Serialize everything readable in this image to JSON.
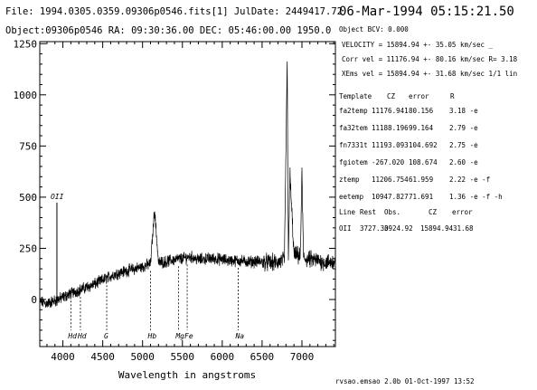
{
  "header": {
    "file_line": "File: 1994.0305.0359.09306p0546.fits[1]  JulDate: 2449417.72",
    "object_line": "Object:09306p0546 RA: 09:30:36.00 DEC: 05:46:00.00 1950.0",
    "datetime": "06-Mar-1994 05:15:21.50",
    "bcv": "Object BCV:    0.000"
  },
  "velocity": {
    "line1": "VELOCITY = 15894.94 +- 35.05 km/sec _",
    "line2": "Corr vel = 11176.94 +- 80.16 km/sec R= 3.18",
    "line3": "XEms vel = 15894.94 +- 31.68 km/sec 1/1 lin"
  },
  "template_table": {
    "headers": [
      "Template",
      "CZ",
      "error",
      "R"
    ],
    "rows": [
      [
        "fa2temp",
        "11176.941",
        "80.156",
        "3.18 -e"
      ],
      [
        "fa32tem",
        "11188.196",
        "99.164",
        "2.79 -e"
      ],
      [
        "fn7331t",
        "11193.093",
        "104.692",
        "2.75 -e"
      ],
      [
        "fgiotem",
        "-267.020",
        "108.674",
        "2.60 -e"
      ],
      [
        "ztemp",
        "11206.754",
        "61.959",
        "2.22 -e -f"
      ],
      [
        "eetemp",
        "10947.827",
        "71.691",
        "1.36 -e -f -h"
      ]
    ]
  },
  "line_table": {
    "headers": [
      "Line",
      "Rest",
      "Obs.",
      "CZ",
      "error"
    ],
    "rows": [
      [
        "OII",
        "3727.30",
        "3924.92",
        "15894.94",
        "31.68"
      ]
    ]
  },
  "footer": "rvsao.emsao 2.0b  01-Oct-1997 13:52",
  "chart_data": {
    "type": "line",
    "title": "",
    "xlabel": "Wavelength in angstroms",
    "ylabel": "",
    "xlim": [
      3710,
      7420
    ],
    "ylim": [
      -230,
      1260
    ],
    "xticks": [
      4000,
      4500,
      5000,
      5500,
      6000,
      6500,
      7000
    ],
    "xtick_labels": [
      "4000",
      "4500",
      "5000",
      "5500",
      "6000",
      "6500",
      "7000"
    ],
    "yticks": [
      0,
      250,
      500,
      750,
      1000,
      1250
    ],
    "ytick_labels": [
      "0",
      "250",
      "500",
      "750",
      "1000",
      "1250"
    ],
    "grid": false,
    "series": [
      {
        "name": "",
        "x": [
          3710,
          3800,
          3900,
          4000,
          4100,
          4200,
          4300,
          4400,
          4500,
          4600,
          4700,
          4800,
          4900,
          5000,
          5100,
          5150,
          5200,
          5300,
          5400,
          5500,
          5600,
          5700,
          5800,
          5900,
          6000,
          6100,
          6200,
          6300,
          6400,
          6500,
          6600,
          6700,
          6780,
          6815,
          6830,
          6850,
          6900,
          6980,
          7000,
          7020,
          7100,
          7200,
          7300,
          7420
        ],
        "y": [
          -10,
          -20,
          -5,
          10,
          30,
          45,
          60,
          75,
          95,
          115,
          130,
          140,
          150,
          160,
          175,
          440,
          180,
          185,
          195,
          200,
          210,
          195,
          200,
          200,
          195,
          190,
          190,
          185,
          185,
          185,
          180,
          180,
          195,
          1160,
          210,
          610,
          220,
          210,
          620,
          200,
          195,
          190,
          180,
          185
        ]
      }
    ],
    "emission_marker": {
      "label": "OII",
      "x": 3925,
      "y": 500
    },
    "absorption_markers": [
      {
        "label": "Hd",
        "x": 4100
      },
      {
        "label": "Hd",
        "x": 4220
      },
      {
        "label": "G",
        "x": 4550
      },
      {
        "label": "Hb",
        "x": 5100
      },
      {
        "label": "Mg",
        "x": 5450
      },
      {
        "label": "Fe",
        "x": 5560
      },
      {
        "label": "Na",
        "x": 6200
      }
    ]
  }
}
